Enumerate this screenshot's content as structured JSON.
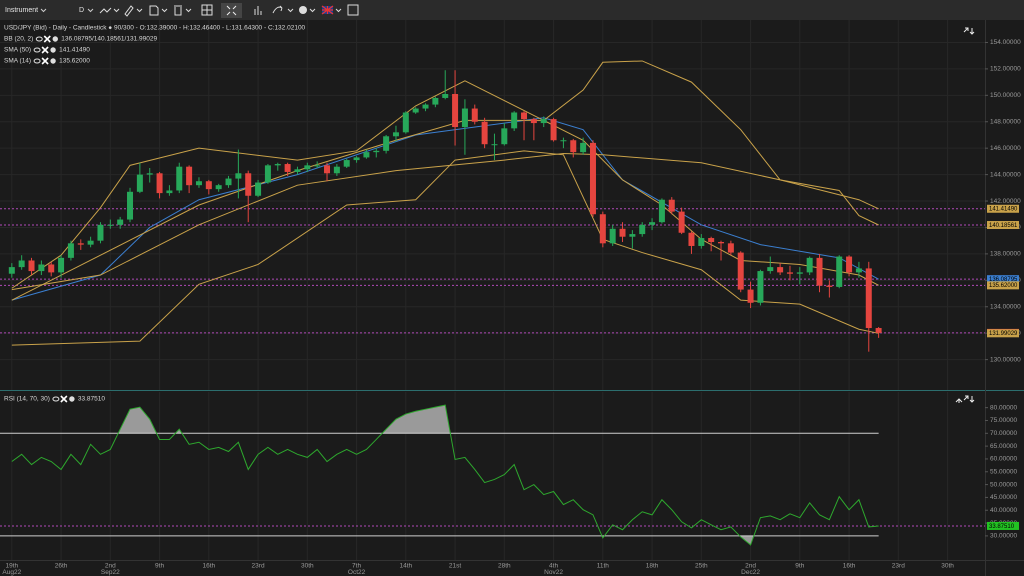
{
  "toolbar": {
    "instrument": "Instrument",
    "timeframe": "D"
  },
  "chart_data": [
    {
      "type": "candlestick",
      "title": "USD/JPY (Bid) - Daily - Candlestick ● 90/300 - O:132.39000 - H:132.46400 - L:131.64300 - C:132.02100",
      "xlim": [
        -1.2,
        98.8
      ],
      "xticks": [
        {
          "value": 0,
          "label": "19th",
          "sublabel": "Aug22"
        },
        {
          "value": 5,
          "label": "26th"
        },
        {
          "value": 10,
          "label": "2nd",
          "sublabel": "Sep22"
        },
        {
          "value": 15,
          "label": "9th"
        },
        {
          "value": 20,
          "label": "16th"
        },
        {
          "value": 25,
          "label": "23rd"
        },
        {
          "value": 30,
          "label": "30th"
        },
        {
          "value": 35,
          "label": "7th",
          "sublabel": "Oct22"
        },
        {
          "value": 40,
          "label": "14th"
        },
        {
          "value": 45,
          "label": "21st"
        },
        {
          "value": 50,
          "label": "28th"
        },
        {
          "value": 55,
          "label": "4th",
          "sublabel": "Nov22"
        },
        {
          "value": 60,
          "label": "11th"
        },
        {
          "value": 65,
          "label": "18th"
        },
        {
          "value": 70,
          "label": "25th"
        },
        {
          "value": 75,
          "label": "2nd",
          "sublabel": "Dec22"
        },
        {
          "value": 80,
          "label": "9th"
        },
        {
          "value": 85,
          "label": "16th"
        },
        {
          "value": 90,
          "label": "23rd"
        },
        {
          "value": 95,
          "label": "30th"
        }
      ],
      "ylim": [
        127.7,
        155.7
      ],
      "yticks": [
        {
          "value": 130,
          "label": "130.00000"
        },
        {
          "value": 132,
          "label": "132.00000"
        },
        {
          "value": 134,
          "label": "134.00000"
        },
        {
          "value": 136,
          "label": "136.00000"
        },
        {
          "value": 138,
          "label": "138.00000"
        },
        {
          "value": 140,
          "label": "140.00000"
        },
        {
          "value": 142,
          "label": "142.00000"
        },
        {
          "value": 144,
          "label": "144.00000"
        },
        {
          "value": 146,
          "label": "146.00000"
        },
        {
          "value": 148,
          "label": "148.00000"
        },
        {
          "value": 150,
          "label": "150.00000"
        },
        {
          "value": 152,
          "label": "152.00000"
        },
        {
          "value": 154,
          "label": "154.00000"
        }
      ],
      "grid": true,
      "up_color": "#27a85a",
      "down_color": "#e5453f",
      "x": [
        0,
        1,
        2,
        3,
        4,
        5,
        6,
        7,
        8,
        9,
        10,
        11,
        12,
        13,
        14,
        15,
        16,
        17,
        18,
        19,
        20,
        21,
        22,
        23,
        24,
        25,
        26,
        27,
        28,
        29,
        30,
        31,
        32,
        33,
        34,
        35,
        36,
        37,
        38,
        39,
        40,
        41,
        42,
        43,
        44,
        45,
        46,
        47,
        48,
        49,
        50,
        51,
        52,
        53,
        54,
        55,
        56,
        57,
        58,
        59,
        60,
        61,
        62,
        63,
        64,
        65,
        66,
        67,
        68,
        69,
        70,
        71,
        72,
        73,
        74,
        75,
        76,
        77,
        78,
        79,
        80,
        81,
        82,
        83,
        84,
        85,
        86,
        87,
        88
      ],
      "open": [
        136.5,
        137.0,
        137.5,
        136.7,
        137.2,
        136.6,
        137.7,
        138.8,
        138.7,
        139.0,
        140.2,
        140.2,
        140.6,
        142.7,
        144.0,
        144.1,
        142.6,
        142.8,
        144.6,
        143.2,
        143.5,
        142.9,
        143.2,
        143.7,
        144.1,
        142.4,
        143.4,
        144.7,
        144.8,
        144.2,
        144.4,
        144.7,
        144.7,
        144.1,
        144.6,
        145.1,
        145.3,
        145.7,
        145.8,
        146.9,
        147.2,
        148.7,
        149.0,
        149.3,
        149.8,
        150.1,
        147.6,
        149.0,
        148.0,
        146.3,
        146.3,
        147.5,
        148.7,
        148.2,
        147.9,
        148.2,
        146.6,
        146.6,
        145.7,
        146.4,
        141.0,
        138.8,
        139.9,
        139.3,
        139.5,
        140.2,
        140.4,
        142.1,
        141.2,
        139.6,
        138.6,
        139.2,
        138.9,
        138.8,
        138.1,
        135.3,
        134.3,
        136.7,
        137.0,
        136.6,
        136.5,
        136.6,
        137.7,
        135.6,
        135.5,
        137.8,
        136.6,
        136.9,
        132.39
      ],
      "high": [
        137.3,
        137.9,
        137.7,
        137.5,
        137.4,
        137.9,
        139.0,
        139.1,
        139.3,
        140.4,
        140.6,
        140.8,
        143.0,
        144.9,
        144.5,
        144.2,
        143.2,
        144.9,
        144.7,
        143.8,
        143.6,
        143.3,
        143.9,
        145.9,
        144.3,
        143.6,
        144.8,
        144.9,
        144.9,
        144.6,
        144.9,
        145.0,
        144.9,
        144.8,
        145.2,
        145.4,
        145.9,
        146.0,
        147.0,
        147.7,
        148.8,
        149.1,
        149.4,
        149.9,
        151.9,
        151.9,
        149.7,
        149.3,
        148.3,
        147.1,
        147.9,
        148.8,
        148.8,
        148.3,
        148.4,
        148.3,
        146.8,
        146.7,
        146.8,
        146.6,
        141.2,
        140.2,
        140.4,
        139.8,
        140.4,
        140.7,
        142.2,
        142.3,
        141.5,
        139.7,
        139.5,
        139.3,
        139.0,
        139.0,
        138.2,
        135.9,
        136.8,
        137.8,
        137.3,
        137.1,
        137.0,
        137.8,
        138.0,
        136.0,
        137.9,
        137.9,
        137.4,
        137.4,
        132.464
      ],
      "low": [
        136.2,
        136.8,
        136.4,
        136.4,
        136.3,
        136.2,
        137.5,
        138.3,
        138.5,
        138.8,
        139.9,
        139.9,
        140.4,
        142.6,
        143.4,
        142.2,
        142.4,
        142.6,
        142.6,
        143.0,
        142.5,
        142.7,
        143.0,
        142.2,
        140.4,
        142.3,
        143.3,
        144.3,
        143.9,
        144.0,
        144.2,
        144.5,
        143.5,
        143.9,
        144.5,
        144.9,
        145.2,
        145.3,
        145.6,
        146.5,
        147.1,
        148.6,
        148.8,
        149.1,
        149.7,
        146.2,
        145.5,
        147.8,
        146.0,
        145.1,
        146.2,
        147.3,
        146.6,
        146.6,
        147.6,
        146.5,
        146.0,
        145.3,
        145.5,
        140.8,
        138.5,
        138.6,
        138.9,
        138.4,
        139.3,
        139.8,
        140.3,
        141.0,
        139.5,
        138.0,
        138.4,
        138.2,
        137.5,
        137.9,
        135.1,
        133.9,
        134.1,
        136.5,
        136.4,
        136.0,
        135.7,
        136.4,
        135.1,
        134.7,
        135.4,
        136.3,
        136.2,
        130.6,
        131.643
      ],
      "close": [
        137.0,
        137.5,
        136.7,
        137.2,
        136.6,
        137.7,
        138.8,
        138.7,
        139.0,
        140.2,
        140.2,
        140.6,
        142.7,
        144.0,
        144.1,
        142.6,
        142.8,
        144.6,
        143.2,
        143.5,
        142.9,
        143.2,
        143.7,
        144.1,
        142.4,
        143.4,
        144.7,
        144.8,
        144.2,
        144.4,
        144.7,
        144.7,
        144.1,
        144.6,
        145.1,
        145.3,
        145.7,
        145.8,
        146.9,
        147.2,
        148.7,
        149.0,
        149.3,
        149.8,
        150.1,
        147.6,
        149.0,
        148.0,
        146.3,
        146.3,
        147.5,
        148.7,
        148.2,
        147.9,
        148.2,
        146.6,
        146.6,
        145.7,
        146.4,
        141.0,
        138.8,
        139.9,
        139.3,
        139.5,
        140.2,
        140.4,
        142.1,
        141.2,
        139.6,
        138.6,
        139.2,
        138.9,
        138.8,
        138.1,
        135.3,
        134.3,
        136.7,
        137.0,
        136.6,
        136.5,
        136.6,
        137.7,
        135.6,
        135.5,
        137.8,
        136.6,
        136.9,
        132.39,
        132.021
      ],
      "overlays": [
        {
          "name": "BB (20, 2)",
          "value_label": "136.08795/140.18561/131.99029",
          "lines": [
            {
              "color": "#3b7fd0",
              "x": [
                0,
                9,
                14,
                19,
                29,
                41,
                54,
                58,
                62,
                70,
                76,
                84,
                88
              ],
              "values": [
                134.5,
                136.4,
                140.0,
                142.1,
                144.0,
                147.0,
                148.3,
                147.4,
                143.6,
                140.2,
                138.7,
                137.7,
                136.08795
              ]
            },
            {
              "color": "#c9a24a",
              "x": [
                0,
                5,
                9,
                12,
                19,
                29,
                35,
                41,
                46,
                54,
                58,
                60,
                64,
                69,
                74,
                78,
                84,
                86,
                88
              ],
              "values": [
                135.4,
                137.9,
                141.5,
                144.7,
                146.0,
                145.1,
                145.8,
                149.2,
                151.1,
                148.1,
                150.4,
                152.5,
                152.6,
                151.0,
                147.4,
                143.6,
                142.8,
                140.9,
                140.18561
              ]
            },
            {
              "color": "#c9a24a",
              "x": [
                0,
                13,
                19,
                25,
                34,
                41,
                45,
                52,
                56,
                60,
                64,
                70,
                74,
                80,
                86,
                88
              ],
              "values": [
                131.1,
                131.4,
                135.7,
                137.2,
                141.7,
                142.1,
                145.1,
                145.8,
                145.5,
                139.1,
                138.1,
                136.8,
                134.5,
                134.2,
                132.3,
                131.99029
              ]
            }
          ]
        },
        {
          "name": "SMA (50)",
          "value_label": "141.41490",
          "lines": [
            {
              "color": "#c9a24a",
              "x": [
                0,
                9,
                19,
                29,
                39,
                50,
                56,
                60,
                70,
                78,
                86,
                88
              ],
              "values": [
                135.3,
                136.4,
                140.2,
                143.2,
                144.3,
                145.1,
                145.6,
                145.5,
                144.9,
                143.6,
                142.1,
                141.4149
              ]
            }
          ]
        },
        {
          "name": "SMA (14)",
          "value_label": "135.62000",
          "lines": [
            {
              "color": "#c9a24a",
              "x": [
                0,
                9,
                19,
                29,
                39,
                46,
                54,
                58,
                62,
                66,
                70,
                74,
                80,
                86,
                88
              ],
              "values": [
                134.5,
                137.9,
                141.7,
                144.3,
                146.6,
                148.1,
                148.1,
                146.6,
                143.6,
                141.7,
                139.1,
                137.5,
                137.2,
                136.4,
                135.62
              ]
            }
          ]
        }
      ],
      "price_tags": [
        {
          "value": 141.4149,
          "label": "141.41490",
          "color": "#c9a24a",
          "guide": true
        },
        {
          "value": 140.18561,
          "label": "140.18561",
          "color": "#c9a24a",
          "guide": true
        },
        {
          "value": 136.08795,
          "label": "136.08795",
          "color": "#3b7fd0",
          "guide": true
        },
        {
          "value": 135.62,
          "label": "135.62000",
          "color": "#c9a24a",
          "guide": true
        },
        {
          "value": 132.021,
          "label": "132.02100",
          "color": "#e5453f",
          "guide": true
        },
        {
          "value": 131.99029,
          "label": "131.99029",
          "color": "#c9a24a",
          "guide": false
        }
      ]
    },
    {
      "type": "line",
      "title": "RSI (14, 70, 30)",
      "value_label": "33.87510",
      "color": "#2ea82e",
      "fill_color": "#9a9a9a",
      "ylim": [
        20.6,
        86.1
      ],
      "yticks": [
        {
          "value": 30,
          "label": "30.00000"
        },
        {
          "value": 35,
          "label": "35.00000"
        },
        {
          "value": 40,
          "label": "40.00000"
        },
        {
          "value": 45,
          "label": "45.00000"
        },
        {
          "value": 50,
          "label": "50.00000"
        },
        {
          "value": 55,
          "label": "55.00000"
        },
        {
          "value": 60,
          "label": "60.00000"
        },
        {
          "value": 65,
          "label": "65.00000"
        },
        {
          "value": 70,
          "label": "70.00000"
        },
        {
          "value": 75,
          "label": "75.00000"
        },
        {
          "value": 80,
          "label": "80.00000"
        }
      ],
      "levels": [
        70,
        30
      ],
      "x": [
        0,
        1,
        2,
        3,
        4,
        5,
        6,
        7,
        8,
        9,
        10,
        11,
        12,
        13,
        14,
        15,
        16,
        17,
        18,
        19,
        20,
        21,
        22,
        23,
        24,
        25,
        26,
        27,
        28,
        29,
        30,
        31,
        32,
        33,
        34,
        35,
        36,
        37,
        38,
        39,
        40,
        41,
        42,
        43,
        44,
        45,
        46,
        47,
        48,
        49,
        50,
        51,
        52,
        53,
        54,
        55,
        56,
        57,
        58,
        59,
        60,
        61,
        62,
        63,
        64,
        65,
        66,
        67,
        68,
        69,
        70,
        71,
        72,
        73,
        74,
        75,
        76,
        77,
        78,
        79,
        80,
        81,
        82,
        83,
        84,
        85,
        86,
        87,
        88
      ],
      "values": [
        59.0,
        61.8,
        57.8,
        60.6,
        59.0,
        55.9,
        61.8,
        57.8,
        65.7,
        61.8,
        63.7,
        71.6,
        79.4,
        80.2,
        75.5,
        67.6,
        67.6,
        71.6,
        65.7,
        66.5,
        63.7,
        64.5,
        62.9,
        66.5,
        55.9,
        61.8,
        64.5,
        61.8,
        63.7,
        61.8,
        60.6,
        63.7,
        59.0,
        61.8,
        63.7,
        61.8,
        63.7,
        67.6,
        71.6,
        75.5,
        77.5,
        78.6,
        79.4,
        80.2,
        81.0,
        59.8,
        60.6,
        55.9,
        50.8,
        52.0,
        53.9,
        57.8,
        48.0,
        50.0,
        46.1,
        47.3,
        42.2,
        44.1,
        40.2,
        38.2,
        29.2,
        34.3,
        32.4,
        36.3,
        39.4,
        38.2,
        44.1,
        40.2,
        35.5,
        33.1,
        36.3,
        34.3,
        32.4,
        33.5,
        29.6,
        26.5,
        37.1,
        37.8,
        36.3,
        38.6,
        37.1,
        42.9,
        38.2,
        36.3,
        45.3,
        40.2,
        44.1,
        33.5,
        33.8751
      ],
      "tag": {
        "value": 33.8751,
        "color": "#22c222"
      }
    }
  ]
}
